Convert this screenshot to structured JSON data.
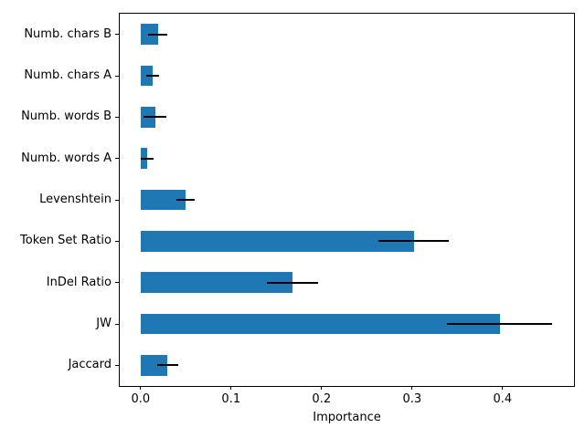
{
  "chart_data": {
    "type": "bar",
    "orientation": "horizontal",
    "title": "",
    "xlabel": "Importance",
    "ylabel": "",
    "category_order": "top_to_bottom",
    "categories": [
      "Numb. chars B",
      "Numb. chars A",
      "Numb. words B",
      "Numb. words A",
      "Levenshtein",
      "Token Set Ratio",
      "InDel Ratio",
      "JW",
      "Jaccard"
    ],
    "values": [
      0.019,
      0.013,
      0.016,
      0.007,
      0.05,
      0.302,
      0.168,
      0.397,
      0.03
    ],
    "xerr": [
      0.011,
      0.007,
      0.013,
      0.007,
      0.01,
      0.039,
      0.028,
      0.058,
      0.012
    ],
    "x_tick_labels": [
      "0.0",
      "0.1",
      "0.2",
      "0.3",
      "0.4"
    ],
    "x_tick_values": [
      0.0,
      0.1,
      0.2,
      0.3,
      0.4
    ],
    "xlim": [
      -0.023,
      0.479
    ],
    "grid": false,
    "legend": null,
    "bar_color": "#1f77b4",
    "error_bar_color": "#000000",
    "axis_color": "#000000",
    "background_color": "#ffffff"
  }
}
